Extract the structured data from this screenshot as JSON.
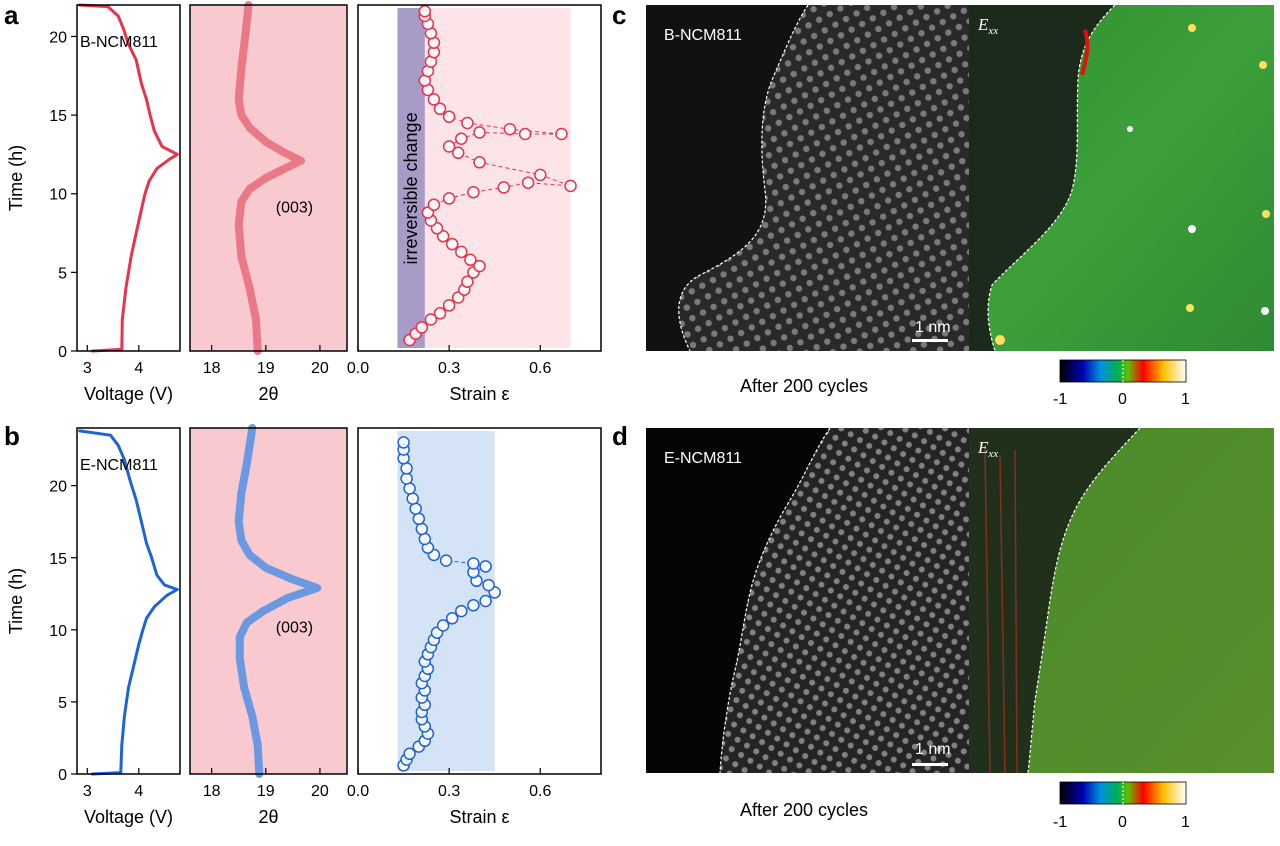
{
  "figure": {
    "panel_labels": [
      "a",
      "b",
      "c",
      "d"
    ],
    "panel_c": {
      "image_label": "B-NCM811",
      "map_label_base": "E",
      "map_label_sub": "xx",
      "scale_bar": "1 nm",
      "caption": "After 200 cycles",
      "colorbar_ticks": [
        "-1",
        "0",
        "1"
      ]
    },
    "panel_d": {
      "image_label": "E-NCM811",
      "map_label_base": "E",
      "map_label_sub": "xx",
      "scale_bar": "1 nm",
      "caption": "After 200 cycles",
      "colorbar_ticks": [
        "-1",
        "0",
        "1"
      ]
    }
  },
  "chart_data": [
    {
      "panel": "a",
      "subplot": "voltage",
      "type": "line",
      "label": "B-NCM811",
      "xlabel": "Voltage (V)",
      "ylabel": "Time (h)",
      "xlim": [
        2.8,
        4.8
      ],
      "ylim": [
        0,
        22
      ],
      "xticks": [
        "3",
        "4"
      ],
      "yticks": [
        "0",
        "5",
        "10",
        "15",
        "20"
      ],
      "color": "#e8334a",
      "points": [
        [
          3.1,
          0
        ],
        [
          3.67,
          0.1
        ],
        [
          3.68,
          2
        ],
        [
          3.75,
          4
        ],
        [
          3.85,
          6
        ],
        [
          3.95,
          7.5
        ],
        [
          4.05,
          9
        ],
        [
          4.12,
          10
        ],
        [
          4.2,
          10.8
        ],
        [
          4.35,
          11.6
        ],
        [
          4.6,
          12.2
        ],
        [
          4.75,
          12.5
        ],
        [
          4.45,
          13
        ],
        [
          4.3,
          14
        ],
        [
          4.22,
          15
        ],
        [
          4.15,
          16
        ],
        [
          4.05,
          17
        ],
        [
          3.95,
          18.5
        ],
        [
          3.8,
          19.5
        ],
        [
          3.7,
          20.5
        ],
        [
          3.6,
          21.3
        ],
        [
          3.4,
          21.9
        ],
        [
          2.85,
          22
        ]
      ]
    },
    {
      "panel": "a",
      "subplot": "2theta",
      "type": "line",
      "xlabel": "2θ",
      "xlim": [
        17.6,
        20.5
      ],
      "ylim": [
        0,
        22
      ],
      "xticks": [
        "18",
        "19",
        "20"
      ],
      "annotation": "(003)",
      "color": "#e8707c",
      "band_color": "#f9c9d0",
      "points": [
        [
          18.85,
          0
        ],
        [
          18.82,
          2
        ],
        [
          18.7,
          4
        ],
        [
          18.55,
          6
        ],
        [
          18.5,
          8
        ],
        [
          18.55,
          9.5
        ],
        [
          18.7,
          10.3
        ],
        [
          19.0,
          11
        ],
        [
          19.35,
          11.6
        ],
        [
          19.65,
          12.1
        ],
        [
          19.35,
          12.6
        ],
        [
          19.0,
          13.3
        ],
        [
          18.7,
          14.2
        ],
        [
          18.55,
          15
        ],
        [
          18.5,
          16
        ],
        [
          18.55,
          18
        ],
        [
          18.62,
          20
        ],
        [
          18.68,
          22
        ]
      ]
    },
    {
      "panel": "a",
      "subplot": "strain",
      "type": "scatter",
      "xlabel": "Strain ε",
      "xlim": [
        0,
        0.8
      ],
      "ylim": [
        0,
        22
      ],
      "xticks": [
        "0.0",
        "0.3",
        "0.6"
      ],
      "annotation": "irreversible change",
      "color": "#e8334a",
      "band_color": "#fde4e8",
      "irreversible_band_color": "#a79bc8",
      "shaded_region_x": [
        0.13,
        0.7
      ],
      "irreversible_region_x": [
        0.13,
        0.22
      ],
      "points": [
        [
          0.17,
          0.7
        ],
        [
          0.19,
          1.1
        ],
        [
          0.21,
          1.5
        ],
        [
          0.24,
          2
        ],
        [
          0.27,
          2.4
        ],
        [
          0.3,
          2.9
        ],
        [
          0.33,
          3.4
        ],
        [
          0.35,
          3.9
        ],
        [
          0.36,
          4.4
        ],
        [
          0.38,
          5
        ],
        [
          0.4,
          5.4
        ],
        [
          0.37,
          5.8
        ],
        [
          0.34,
          6.3
        ],
        [
          0.31,
          6.8
        ],
        [
          0.28,
          7.3
        ],
        [
          0.26,
          7.8
        ],
        [
          0.24,
          8.3
        ],
        [
          0.23,
          8.8
        ],
        [
          0.25,
          9.3
        ],
        [
          0.3,
          9.7
        ],
        [
          0.38,
          10.1
        ],
        [
          0.48,
          10.4
        ],
        [
          0.56,
          10.7
        ],
        [
          0.7,
          10.5
        ],
        [
          0.6,
          11.2
        ],
        [
          0.4,
          12.0
        ],
        [
          0.33,
          12.6
        ],
        [
          0.3,
          13.0
        ],
        [
          0.34,
          13.5
        ],
        [
          0.4,
          13.9
        ],
        [
          0.55,
          13.8
        ],
        [
          0.67,
          13.8
        ],
        [
          0.5,
          14.1
        ],
        [
          0.36,
          14.5
        ],
        [
          0.3,
          14.9
        ],
        [
          0.27,
          15.4
        ],
        [
          0.25,
          16
        ],
        [
          0.23,
          16.6
        ],
        [
          0.22,
          17.2
        ],
        [
          0.23,
          17.8
        ],
        [
          0.24,
          18.4
        ],
        [
          0.25,
          19
        ],
        [
          0.25,
          19.6
        ],
        [
          0.24,
          20.2
        ],
        [
          0.23,
          20.8
        ],
        [
          0.22,
          21.3
        ],
        [
          0.22,
          21.6
        ]
      ]
    },
    {
      "panel": "b",
      "subplot": "voltage",
      "type": "line",
      "label": "E-NCM811",
      "xlabel": "Voltage (V)",
      "ylabel": "Time (h)",
      "xlim": [
        2.8,
        4.8
      ],
      "ylim": [
        0,
        24
      ],
      "xticks": [
        "3",
        "4"
      ],
      "yticks": [
        "0",
        "5",
        "10",
        "15",
        "20"
      ],
      "color": "#1f63d8",
      "points": [
        [
          3.1,
          0
        ],
        [
          3.65,
          0.1
        ],
        [
          3.67,
          2
        ],
        [
          3.72,
          4
        ],
        [
          3.8,
          6
        ],
        [
          3.9,
          7.5
        ],
        [
          4.0,
          9
        ],
        [
          4.08,
          10
        ],
        [
          4.15,
          10.8
        ],
        [
          4.3,
          11.6
        ],
        [
          4.55,
          12.4
        ],
        [
          4.75,
          12.8
        ],
        [
          4.5,
          13.1
        ],
        [
          4.35,
          13.8
        ],
        [
          4.25,
          15
        ],
        [
          4.15,
          16
        ],
        [
          4.05,
          17.5
        ],
        [
          3.95,
          19
        ],
        [
          3.82,
          20.5
        ],
        [
          3.72,
          21.8
        ],
        [
          3.6,
          22.8
        ],
        [
          3.45,
          23.5
        ],
        [
          2.85,
          23.8
        ]
      ]
    },
    {
      "panel": "b",
      "subplot": "2theta",
      "type": "line",
      "xlabel": "2θ",
      "xlim": [
        17.6,
        20.5
      ],
      "ylim": [
        0,
        24
      ],
      "xticks": [
        "18",
        "19",
        "20"
      ],
      "annotation": "(003)",
      "color": "#5a92e2",
      "band_color": "#f9c9d0",
      "points": [
        [
          18.88,
          0
        ],
        [
          18.85,
          2
        ],
        [
          18.75,
          4
        ],
        [
          18.6,
          6
        ],
        [
          18.52,
          8
        ],
        [
          18.52,
          9.5
        ],
        [
          18.65,
          10.5
        ],
        [
          18.95,
          11.3
        ],
        [
          19.4,
          12.2
        ],
        [
          19.95,
          12.9
        ],
        [
          19.5,
          13.5
        ],
        [
          19.0,
          14.3
        ],
        [
          18.7,
          15.2
        ],
        [
          18.55,
          16.2
        ],
        [
          18.5,
          17.5
        ],
        [
          18.55,
          19.5
        ],
        [
          18.65,
          21.5
        ],
        [
          18.75,
          24
        ]
      ]
    },
    {
      "panel": "b",
      "subplot": "strain",
      "type": "scatter",
      "xlabel": "Strain ε",
      "xlim": [
        0,
        0.8
      ],
      "ylim": [
        0,
        24
      ],
      "xticks": [
        "0.0",
        "0.3",
        "0.6"
      ],
      "color": "#1f63d8",
      "band_color": "#d5e3f7",
      "shaded_region_x": [
        0.13,
        0.45
      ],
      "points": [
        [
          0.15,
          0.6
        ],
        [
          0.16,
          1.0
        ],
        [
          0.17,
          1.4
        ],
        [
          0.2,
          1.9
        ],
        [
          0.22,
          2.3
        ],
        [
          0.23,
          2.8
        ],
        [
          0.22,
          3.3
        ],
        [
          0.21,
          3.8
        ],
        [
          0.21,
          4.3
        ],
        [
          0.22,
          4.8
        ],
        [
          0.21,
          5.3
        ],
        [
          0.22,
          5.8
        ],
        [
          0.21,
          6.3
        ],
        [
          0.22,
          6.8
        ],
        [
          0.23,
          7.3
        ],
        [
          0.22,
          7.8
        ],
        [
          0.23,
          8.3
        ],
        [
          0.24,
          8.8
        ],
        [
          0.25,
          9.3
        ],
        [
          0.26,
          9.8
        ],
        [
          0.28,
          10.3
        ],
        [
          0.31,
          10.8
        ],
        [
          0.34,
          11.3
        ],
        [
          0.38,
          11.7
        ],
        [
          0.42,
          12.0
        ],
        [
          0.45,
          12.6
        ],
        [
          0.43,
          13.1
        ],
        [
          0.39,
          13.4
        ],
        [
          0.38,
          14.0
        ],
        [
          0.42,
          14.4
        ],
        [
          0.38,
          14.6
        ],
        [
          0.29,
          14.8
        ],
        [
          0.25,
          15.2
        ],
        [
          0.23,
          15.7
        ],
        [
          0.22,
          16.3
        ],
        [
          0.21,
          17.0
        ],
        [
          0.2,
          17.7
        ],
        [
          0.19,
          18.4
        ],
        [
          0.18,
          19.1
        ],
        [
          0.17,
          19.8
        ],
        [
          0.16,
          20.5
        ],
        [
          0.16,
          21.2
        ],
        [
          0.15,
          21.9
        ],
        [
          0.15,
          22.5
        ],
        [
          0.15,
          23.0
        ]
      ]
    }
  ]
}
